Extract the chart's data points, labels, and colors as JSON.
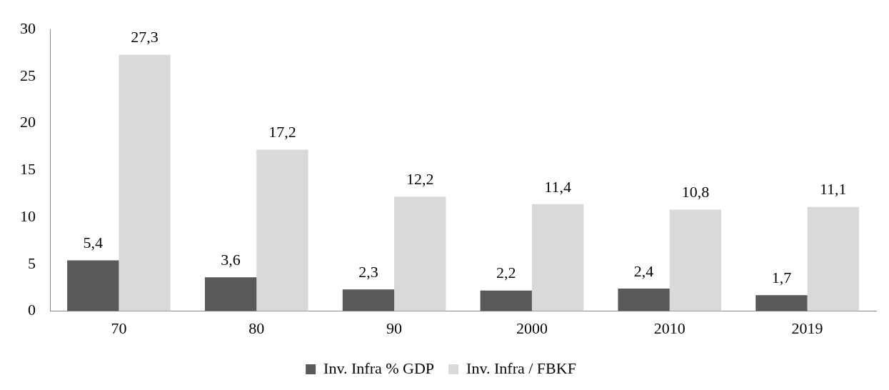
{
  "chart_data": {
    "type": "bar",
    "categories": [
      "70",
      "80",
      "90",
      "2000",
      "2010",
      "2019"
    ],
    "series": [
      {
        "name": "Inv. Infra % GDP",
        "color": "#595959",
        "values": [
          5.4,
          3.6,
          2.3,
          2.2,
          2.4,
          1.7
        ],
        "value_labels": [
          "5,4",
          "3,6",
          "2,3",
          "2,2",
          "2,4",
          "1,7"
        ]
      },
      {
        "name": "Inv. Infra / FBKF",
        "color": "#d9d9d9",
        "values": [
          27.3,
          17.2,
          12.2,
          11.4,
          10.8,
          11.1
        ],
        "value_labels": [
          "27,3",
          "17,2",
          "12,2",
          "11,4",
          "10,8",
          "11,1"
        ]
      }
    ],
    "ylim": [
      0,
      30
    ],
    "yticks": [
      0,
      5,
      10,
      15,
      20,
      25,
      30
    ],
    "grid": false,
    "legend": "bottom"
  }
}
